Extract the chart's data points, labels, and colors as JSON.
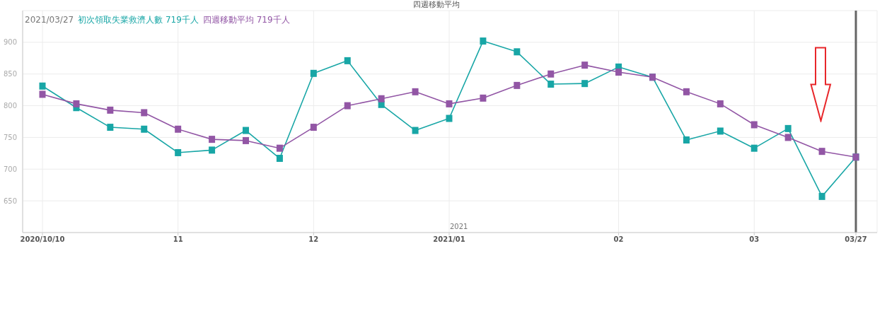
{
  "chart_data": {
    "type": "line",
    "title": "四週移動平均",
    "legend_title": "2021/03/27",
    "categories": [
      "2020/10/10",
      null,
      null,
      null,
      "11",
      null,
      null,
      null,
      "12",
      null,
      null,
      null,
      "2021/01",
      null,
      null,
      null,
      null,
      "02",
      null,
      null,
      null,
      "03",
      null,
      null,
      "03/27"
    ],
    "series": [
      {
        "name": "初次領取失業救濟人數 719千人",
        "color": "#18a6a6",
        "values": [
          831,
          797,
          766,
          763,
          726,
          730,
          761,
          717,
          851,
          871,
          802,
          761,
          780,
          902,
          885,
          834,
          835,
          861,
          845,
          746,
          760,
          733,
          764,
          657,
          719
        ]
      },
      {
        "name": "四週移動平均 719千人",
        "color": "#9256a5",
        "values": [
          818,
          803,
          793,
          789,
          763,
          747,
          745,
          733,
          766,
          800,
          811,
          822,
          803,
          812,
          832,
          850,
          864,
          853,
          845,
          822,
          803,
          770,
          750,
          728,
          719
        ]
      }
    ],
    "ylim": [
      600,
      950
    ],
    "yticks": [
      650,
      700,
      750,
      800,
      850,
      900
    ],
    "ref_lines": [
      {
        "axis": "x",
        "value": "03/27",
        "color": "#666666"
      }
    ],
    "annotations": [
      "2021"
    ],
    "grid": true,
    "legend": "top left",
    "marker": "square",
    "line_style": "solid"
  }
}
